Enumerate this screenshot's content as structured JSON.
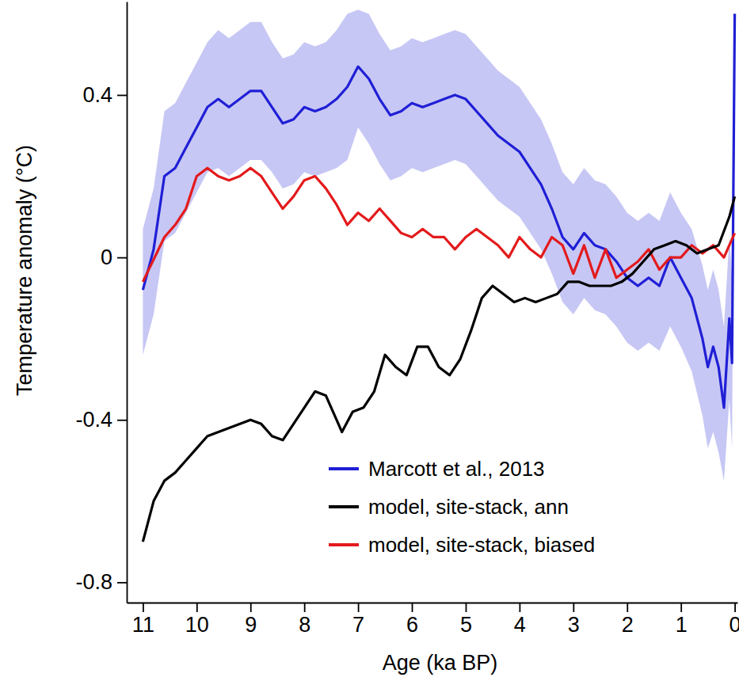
{
  "chart_data": {
    "type": "line",
    "x_label": "Age (ka BP)",
    "y_label": "Temperature anomaly (°C)",
    "xlim": [
      11.3,
      -0.05
    ],
    "ylim": [
      -0.85,
      0.63
    ],
    "xticks": [
      11,
      10,
      9,
      8,
      7,
      6,
      5,
      4,
      3,
      2,
      1,
      0
    ],
    "yticks": [
      0.4,
      0,
      -0.4,
      -0.8
    ],
    "legend": "bottom-right",
    "grid": false,
    "series": [
      {
        "name": "Marcott et al., 2013",
        "color": "#1f1fd6",
        "x": [
          11,
          10.8,
          10.6,
          10.4,
          10.2,
          10,
          9.8,
          9.6,
          9.4,
          9.2,
          9,
          8.8,
          8.6,
          8.4,
          8.2,
          8,
          7.8,
          7.6,
          7.4,
          7.2,
          7,
          6.8,
          6.6,
          6.4,
          6.2,
          6,
          5.8,
          5.6,
          5.4,
          5.2,
          5,
          4.8,
          4.6,
          4.4,
          4.2,
          4,
          3.8,
          3.6,
          3.4,
          3.2,
          3,
          2.8,
          2.6,
          2.4,
          2.2,
          2,
          1.8,
          1.6,
          1.4,
          1.2,
          1,
          0.8,
          0.6,
          0.5,
          0.4,
          0.3,
          0.2,
          0.1,
          0.05,
          0
        ],
        "values": [
          -0.08,
          0.02,
          0.2,
          0.22,
          0.27,
          0.32,
          0.37,
          0.39,
          0.37,
          0.39,
          0.41,
          0.41,
          0.37,
          0.33,
          0.34,
          0.37,
          0.36,
          0.37,
          0.39,
          0.42,
          0.47,
          0.44,
          0.39,
          0.35,
          0.36,
          0.38,
          0.37,
          0.38,
          0.39,
          0.4,
          0.39,
          0.36,
          0.33,
          0.3,
          0.28,
          0.26,
          0.22,
          0.18,
          0.12,
          0.05,
          0.02,
          0.06,
          0.03,
          0.02,
          -0.01,
          -0.05,
          -0.07,
          -0.05,
          -0.07,
          0,
          -0.05,
          -0.1,
          -0.2,
          -0.27,
          -0.22,
          -0.27,
          -0.37,
          -0.15,
          -0.26,
          0.6
        ],
        "upper": [
          0.07,
          0.17,
          0.36,
          0.38,
          0.43,
          0.48,
          0.53,
          0.56,
          0.54,
          0.56,
          0.58,
          0.58,
          0.53,
          0.49,
          0.5,
          0.53,
          0.52,
          0.53,
          0.56,
          0.6,
          0.61,
          0.6,
          0.55,
          0.51,
          0.52,
          0.54,
          0.53,
          0.54,
          0.55,
          0.56,
          0.55,
          0.52,
          0.49,
          0.46,
          0.44,
          0.42,
          0.38,
          0.34,
          0.28,
          0.21,
          0.18,
          0.22,
          0.19,
          0.18,
          0.15,
          0.11,
          0.09,
          0.11,
          0.09,
          0.16,
          0.11,
          0.07,
          -0.02,
          -0.08,
          -0.03,
          -0.08,
          -0.17,
          0.05,
          -0.05,
          0.6
        ],
        "lower": [
          -0.24,
          -0.14,
          0.04,
          0.06,
          0.11,
          0.16,
          0.21,
          0.22,
          0.2,
          0.22,
          0.24,
          0.24,
          0.21,
          0.17,
          0.18,
          0.21,
          0.2,
          0.21,
          0.22,
          0.24,
          0.32,
          0.28,
          0.23,
          0.19,
          0.2,
          0.22,
          0.21,
          0.22,
          0.23,
          0.24,
          0.23,
          0.2,
          0.17,
          0.14,
          0.12,
          0.1,
          0.06,
          0.02,
          -0.04,
          -0.11,
          -0.14,
          -0.1,
          -0.13,
          -0.14,
          -0.17,
          -0.21,
          -0.23,
          -0.21,
          -0.23,
          -0.17,
          -0.22,
          -0.28,
          -0.39,
          -0.47,
          -0.43,
          -0.48,
          -0.55,
          -0.35,
          -0.47,
          0.6
        ]
      },
      {
        "name": "model, site-stack, ann",
        "color": "#000000",
        "x": [
          11,
          10.8,
          10.6,
          10.4,
          10.2,
          10,
          9.8,
          9.4,
          9,
          8.8,
          8.6,
          8.4,
          8.2,
          8,
          7.8,
          7.6,
          7.4,
          7.3,
          7.1,
          6.9,
          6.7,
          6.5,
          6.3,
          6.1,
          5.9,
          5.7,
          5.5,
          5.3,
          5.1,
          4.9,
          4.7,
          4.5,
          4.3,
          4.1,
          3.9,
          3.7,
          3.5,
          3.3,
          3.1,
          2.9,
          2.7,
          2.5,
          2.3,
          2.1,
          1.9,
          1.7,
          1.5,
          1.3,
          1.1,
          0.9,
          0.7,
          0.5,
          0.3,
          0.1,
          0
        ],
        "values": [
          -0.7,
          -0.6,
          -0.55,
          -0.53,
          -0.5,
          -0.47,
          -0.44,
          -0.42,
          -0.4,
          -0.41,
          -0.44,
          -0.45,
          -0.41,
          -0.37,
          -0.33,
          -0.34,
          -0.4,
          -0.43,
          -0.38,
          -0.37,
          -0.33,
          -0.24,
          -0.27,
          -0.29,
          -0.22,
          -0.22,
          -0.27,
          -0.29,
          -0.25,
          -0.18,
          -0.1,
          -0.07,
          -0.09,
          -0.11,
          -0.1,
          -0.11,
          -0.1,
          -0.09,
          -0.06,
          -0.06,
          -0.07,
          -0.07,
          -0.07,
          -0.06,
          -0.04,
          -0.01,
          0.02,
          0.03,
          0.04,
          0.03,
          0.01,
          0.02,
          0.03,
          0.1,
          0.15
        ]
      },
      {
        "name": "model, site-stack, biased",
        "color": "#e31a1c",
        "x": [
          11,
          10.6,
          10.4,
          10.2,
          10,
          9.8,
          9.6,
          9.4,
          9.2,
          9,
          8.8,
          8.6,
          8.4,
          8.2,
          8,
          7.8,
          7.6,
          7.4,
          7.2,
          7,
          6.8,
          6.6,
          6.4,
          6.2,
          6,
          5.8,
          5.6,
          5.4,
          5.2,
          5,
          4.8,
          4.6,
          4.4,
          4.2,
          4,
          3.8,
          3.6,
          3.4,
          3.2,
          3,
          2.8,
          2.6,
          2.4,
          2.2,
          2,
          1.8,
          1.6,
          1.4,
          1.2,
          1,
          0.8,
          0.6,
          0.4,
          0.2,
          0.1,
          0
        ],
        "values": [
          -0.06,
          0.05,
          0.08,
          0.12,
          0.2,
          0.22,
          0.2,
          0.19,
          0.2,
          0.22,
          0.2,
          0.16,
          0.12,
          0.15,
          0.19,
          0.2,
          0.17,
          0.13,
          0.08,
          0.11,
          0.09,
          0.12,
          0.09,
          0.06,
          0.05,
          0.07,
          0.05,
          0.05,
          0.02,
          0.05,
          0.07,
          0.05,
          0.03,
          0,
          0.05,
          0.02,
          0,
          0.05,
          0.03,
          -0.04,
          0.03,
          -0.05,
          0.02,
          -0.05,
          -0.03,
          -0.01,
          0.02,
          -0.03,
          0,
          0,
          0.03,
          0.01,
          0.03,
          0,
          0.03,
          0.06
        ]
      }
    ]
  }
}
